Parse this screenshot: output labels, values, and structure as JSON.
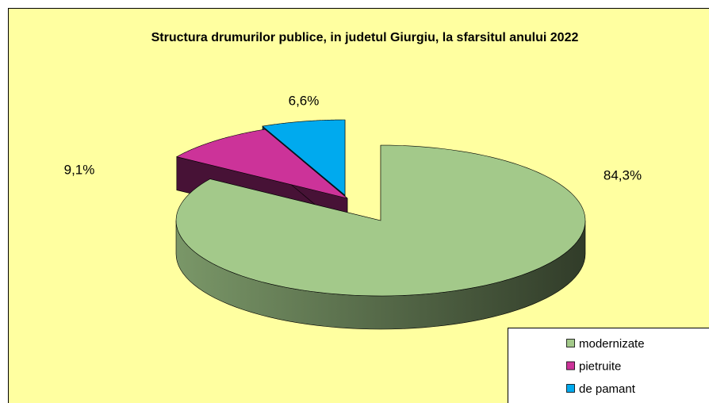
{
  "chart_data": {
    "type": "pie",
    "title": "Structura drumurilor publice, in judetul Giurgiu, la sfarsitul anului 2022",
    "categories": [
      "modernizate",
      "pietruite",
      "de pamant"
    ],
    "values": [
      84.3,
      9.1,
      6.6
    ],
    "value_labels": [
      "84,3%",
      "9,1%",
      "6,6%"
    ],
    "colors": [
      "#a3c98a",
      "#cc3399",
      "#00aaee"
    ],
    "legend": "bottom-right"
  }
}
